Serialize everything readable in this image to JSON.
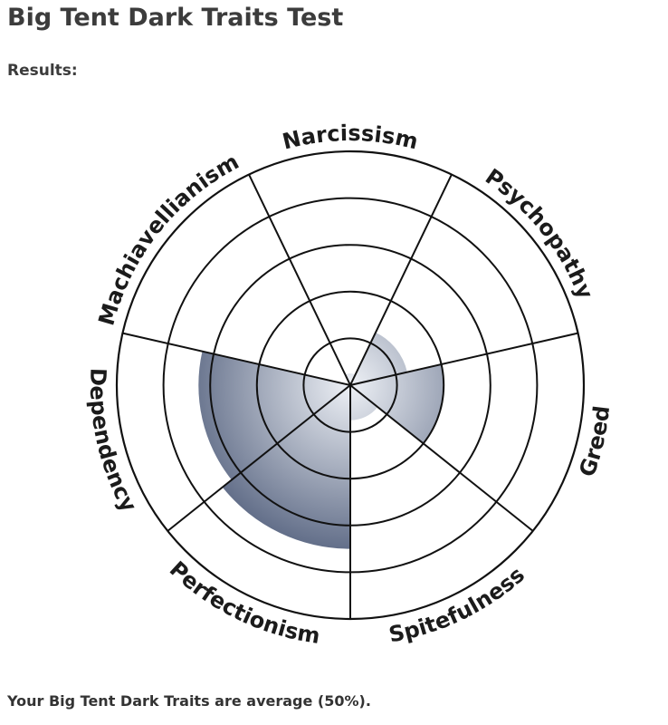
{
  "page": {
    "title": "Big Tent Dark Traits Test",
    "results_label": "Results:",
    "summary": "Your Big Tent Dark Traits are average (50%)."
  },
  "colors": {
    "fill_dark": "#26365a",
    "fill_light": "#eef1f6",
    "line": "#111111"
  },
  "chart_data": {
    "type": "polar-area",
    "categories": [
      "Narcissism",
      "Psychopathy",
      "Greed",
      "Spitefulness",
      "Perfectionism",
      "Dependency",
      "Machiavellianism"
    ],
    "values": [
      5,
      25,
      40,
      15,
      70,
      65,
      0
    ],
    "scale": [
      0,
      100
    ],
    "rings": 5,
    "grid": true
  }
}
